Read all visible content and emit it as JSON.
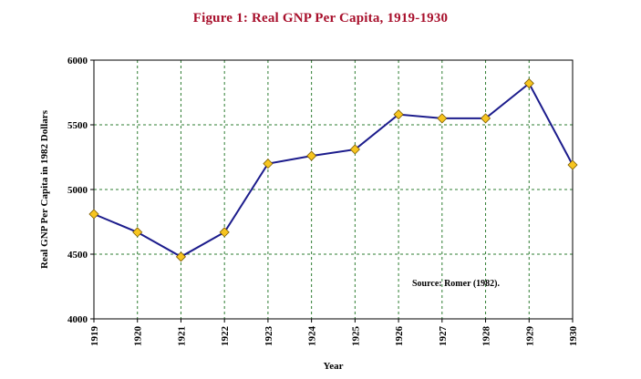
{
  "chart_data": {
    "type": "line",
    "title": "Figure 1: Real GNP Per Capita, 1919-1930",
    "xlabel": "Year",
    "ylabel": "Real GNP Per Capita in 1982 Dollars",
    "annotation": "Source: Romer (1982).",
    "x": [
      "1919",
      "1920",
      "1921",
      "1922",
      "1923",
      "1924",
      "1925",
      "1926",
      "1927",
      "1928",
      "1929",
      "1930"
    ],
    "values": [
      4810,
      4670,
      4480,
      4670,
      5200,
      5260,
      5310,
      5580,
      5550,
      5550,
      5820,
      5190
    ],
    "ylim": [
      4000,
      6000
    ],
    "yticks": [
      4000,
      4500,
      5000,
      5500,
      6000
    ],
    "grid": true,
    "legend": "none",
    "colors": {
      "title": "#a8102c",
      "line": "#1c1c8c",
      "marker_fill": "#f7c520",
      "marker_stroke": "#7a5a00",
      "grid": "#2e7d32",
      "axis": "#000000"
    }
  }
}
